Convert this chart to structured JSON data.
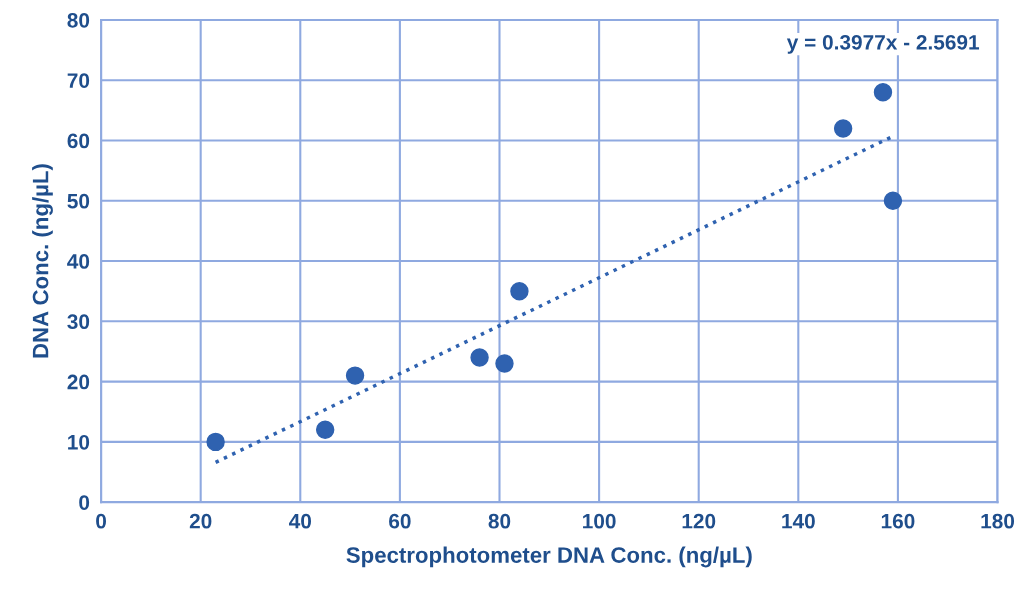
{
  "chart_data": {
    "type": "scatter",
    "xlabel": "Spectrophotometer DNA Conc. (ng/µL)",
    "ylabel": "DNA Conc. (ng/µL)",
    "annotations": [
      "y = 0.3977x - 2.5691"
    ],
    "series": [
      {
        "color": "#2f62b0",
        "marker": "circle",
        "x": [
          23,
          45,
          51,
          76,
          81,
          84,
          149,
          157,
          159
        ],
        "values": [
          10,
          12,
          21,
          24,
          23,
          35,
          62,
          68,
          50
        ]
      },
      {
        "type": "line",
        "color": "#2f62b0",
        "line_style": "dotted",
        "marker": "none",
        "x": [
          23,
          159
        ],
        "values": [
          6.6,
          60.7
        ]
      }
    ],
    "xlim": [
      0,
      180
    ],
    "xticks": [
      0,
      20,
      40,
      60,
      80,
      100,
      120,
      140,
      160,
      180
    ],
    "ylim": [
      0,
      80
    ],
    "yticks": [
      0,
      10,
      20,
      30,
      40,
      50,
      60,
      70,
      80
    ],
    "grid": true
  }
}
